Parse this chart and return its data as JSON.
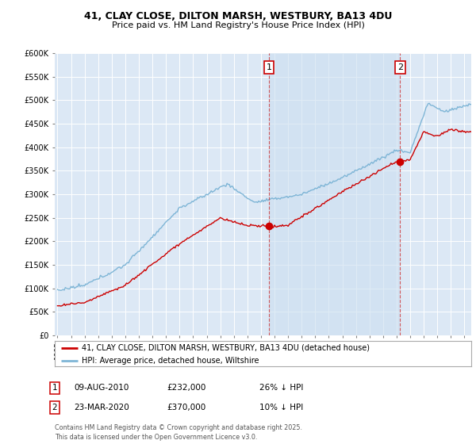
{
  "title": "41, CLAY CLOSE, DILTON MARSH, WESTBURY, BA13 4DU",
  "subtitle": "Price paid vs. HM Land Registry's House Price Index (HPI)",
  "legend_label_red": "41, CLAY CLOSE, DILTON MARSH, WESTBURY, BA13 4DU (detached house)",
  "legend_label_blue": "HPI: Average price, detached house, Wiltshire",
  "annotation1_date": "09-AUG-2010",
  "annotation1_price": "£232,000",
  "annotation1_hpi": "26% ↓ HPI",
  "annotation2_date": "23-MAR-2020",
  "annotation2_price": "£370,000",
  "annotation2_hpi": "10% ↓ HPI",
  "footer": "Contains HM Land Registry data © Crown copyright and database right 2025.\nThis data is licensed under the Open Government Licence v3.0.",
  "red_color": "#cc0000",
  "blue_color": "#7eb5d6",
  "shade_color": "#dce8f5",
  "marker1_x": 2010.6,
  "marker1_y": 232000,
  "marker2_x": 2020.25,
  "marker2_y": 370000,
  "vline1_x": 2010.6,
  "vline2_x": 2020.25,
  "ylim": [
    0,
    600000
  ],
  "xlim": [
    1994.8,
    2025.5
  ],
  "background_color": "#dce8f5",
  "grid_color": "#ffffff"
}
